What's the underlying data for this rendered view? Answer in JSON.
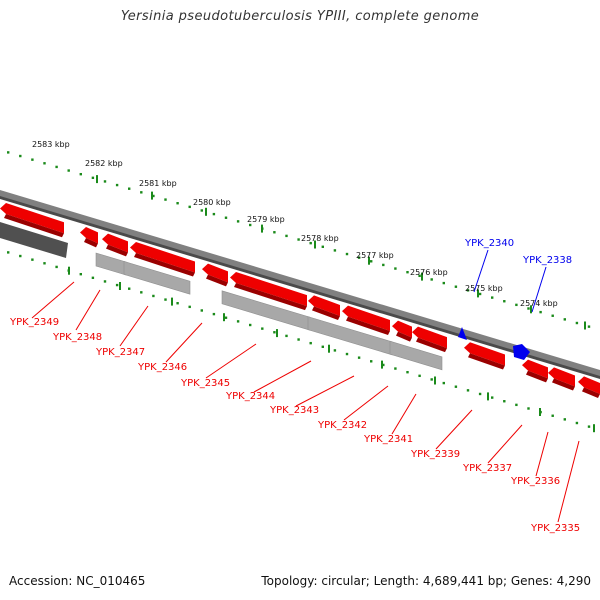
{
  "title": "Yersinia pseudotuberculosis YPIII, complete genome",
  "footer": {
    "accession": "Accession: NC_010465",
    "topology": "Topology: circular; Length: 4,689,441 bp; Genes: 4,290"
  },
  "colors": {
    "forward_gene": "#0000ee",
    "reverse_gene": "#ee0000",
    "tick": "#1a8a1a",
    "backbone": "#808080",
    "rna_track": "#a8a8a8"
  },
  "scale_labels": [
    "2583 kbp",
    "2582 kbp",
    "2581 kbp",
    "2580 kbp",
    "2579 kbp",
    "2578 kbp",
    "2577 kbp",
    "2576 kbp",
    "2575 kbp",
    "2574 kbp"
  ],
  "forward_genes": [
    "YPK_2340",
    "YPK_2338"
  ],
  "reverse_genes": [
    "YPK_2349",
    "YPK_2348",
    "YPK_2347",
    "YPK_2346",
    "YPK_2345",
    "YPK_2344",
    "YPK_2343",
    "YPK_2342",
    "YPK_2341",
    "YPK_2339",
    "YPK_2337",
    "YPK_2336",
    "YPK_2335"
  ]
}
